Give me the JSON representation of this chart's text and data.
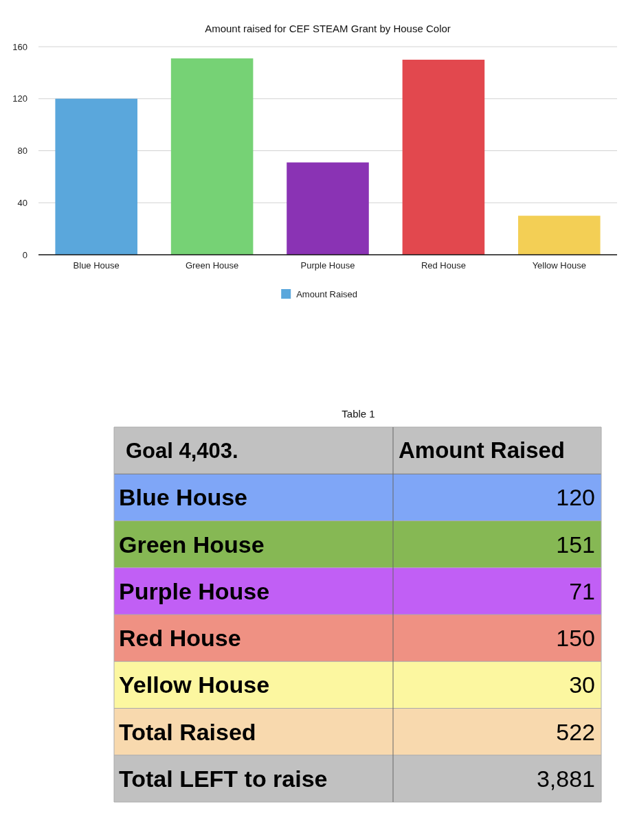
{
  "chart_data": [
    {
      "type": "bar",
      "title": "Amount raised for CEF STEAM Grant by House Color",
      "categories": [
        "Blue House",
        "Green House",
        "Purple House",
        "Red House",
        "Yellow House"
      ],
      "series": [
        {
          "name": "Amount Raised",
          "color": "#5aa7dc",
          "colors": [
            "#5aa7dc",
            "#76d275",
            "#8a33b4",
            "#e2484e",
            "#f3cf55"
          ],
          "values": [
            120,
            151,
            71,
            150,
            30
          ]
        }
      ],
      "ylim": [
        0,
        160
      ],
      "yticks": [
        0,
        40,
        80,
        120,
        160
      ],
      "grid": "y",
      "legend": "bottom"
    },
    {
      "type": "other",
      "title": "Table 1",
      "annotations": [
        "Goal 4,403.",
        "Amount Raised"
      ],
      "categories": [
        "Blue House",
        "Green House",
        "Purple House",
        "Red House",
        "Yellow House",
        "Total Raised",
        "Total LEFT to raise"
      ],
      "value_labels": [
        "120",
        "151",
        "71",
        "150",
        "30",
        "522",
        "3,881"
      ],
      "colors": [
        "#7fa6f7",
        "#86b854",
        "#c15ff5",
        "#ef9183",
        "#fcf7a0",
        "#f8d9ae",
        "#c1c1c1"
      ]
    }
  ]
}
